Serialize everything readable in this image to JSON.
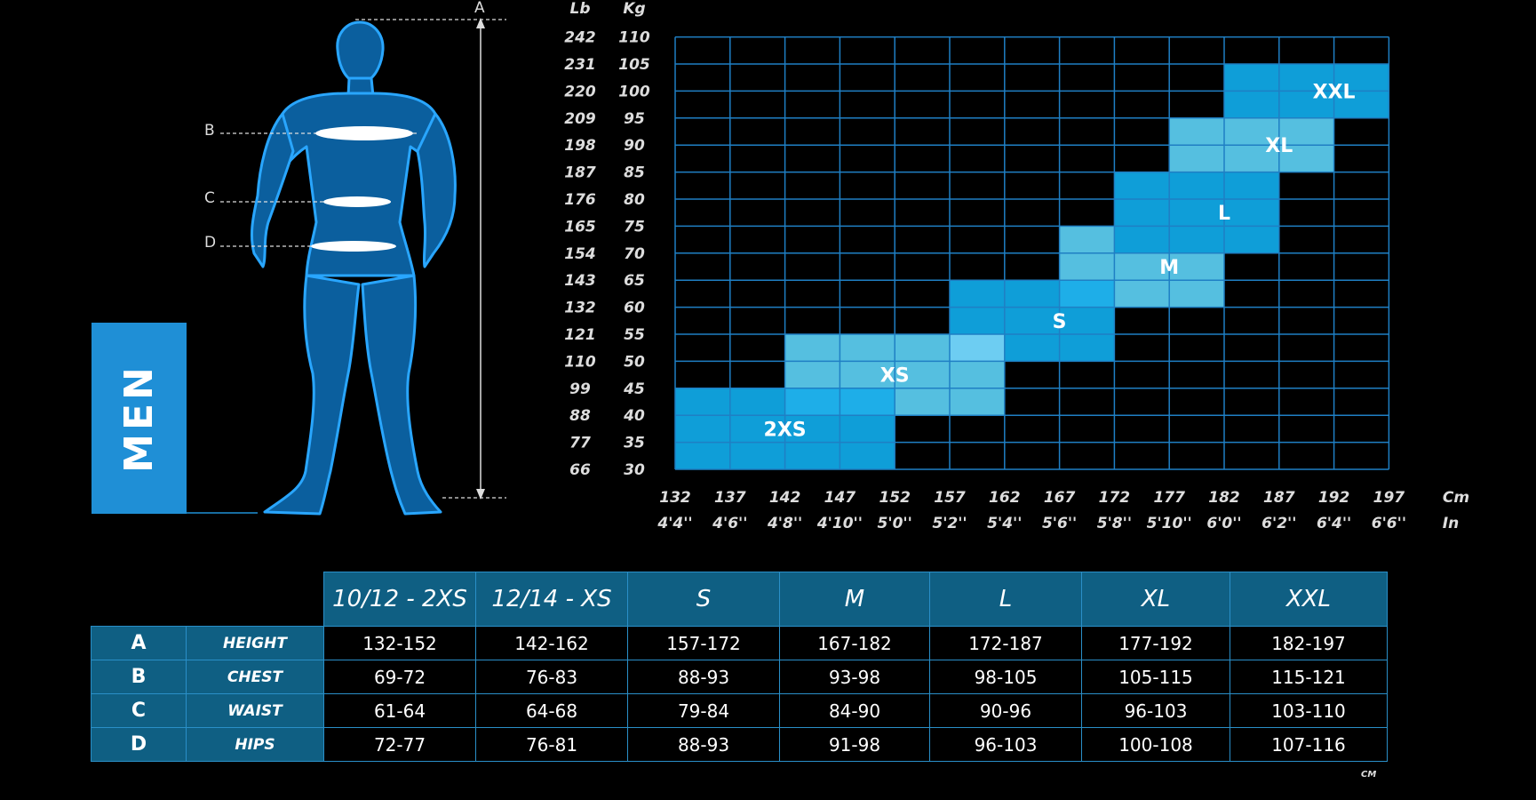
{
  "gender_label": "MEN",
  "body_markers": [
    "A",
    "B",
    "C",
    "D"
  ],
  "chart_data": {
    "type": "heatmap",
    "y_units": [
      "Lb",
      "Kg"
    ],
    "y_lb": [
      "242",
      "231",
      "220",
      "209",
      "198",
      "187",
      "176",
      "165",
      "154",
      "143",
      "132",
      "121",
      "110",
      "99",
      "88",
      "77",
      "66"
    ],
    "y_kg": [
      "110",
      "105",
      "100",
      "95",
      "90",
      "85",
      "80",
      "75",
      "70",
      "65",
      "60",
      "55",
      "50",
      "45",
      "40",
      "35",
      "30"
    ],
    "x_units": [
      "Cm",
      "In"
    ],
    "x_cm": [
      "132",
      "137",
      "142",
      "147",
      "152",
      "157",
      "162",
      "167",
      "172",
      "177",
      "182",
      "187",
      "192",
      "197"
    ],
    "x_in": [
      "4'4''",
      "4'6''",
      "4'8''",
      "4'10''",
      "5'0''",
      "5'2''",
      "5'4''",
      "5'6''",
      "5'8''",
      "5'10''",
      "6'0''",
      "6'2''",
      "6'4''",
      "6'6''"
    ],
    "grid": true,
    "sizes": [
      {
        "name": "2XS",
        "height_cm": [
          132,
          152
        ],
        "weight_kg": [
          30,
          45
        ],
        "color": "#0f9ed8",
        "label_at": [
          142,
          37.5
        ]
      },
      {
        "name": "XS",
        "height_cm": [
          142,
          162
        ],
        "weight_kg": [
          40,
          55
        ],
        "color": "#55bfe0",
        "label_at": [
          152,
          47.5
        ]
      },
      {
        "name": "S",
        "height_cm": [
          157,
          172
        ],
        "weight_kg": [
          50,
          65
        ],
        "color": "#0f9ed8",
        "label_at": [
          167,
          57.5
        ]
      },
      {
        "name": "M",
        "height_cm": [
          167,
          182
        ],
        "weight_kg": [
          60,
          75
        ],
        "color": "#55bfe0",
        "label_at": [
          177,
          67.5
        ]
      },
      {
        "name": "L",
        "height_cm": [
          172,
          187
        ],
        "weight_kg": [
          70,
          85
        ],
        "color": "#0f9ed8",
        "label_at": [
          182,
          77.5
        ]
      },
      {
        "name": "XL",
        "height_cm": [
          177,
          192
        ],
        "weight_kg": [
          85,
          95
        ],
        "color": "#55bfe0",
        "label_at": [
          187,
          90
        ]
      },
      {
        "name": "XXL",
        "height_cm": [
          182,
          197
        ],
        "weight_kg": [
          95,
          105
        ],
        "color": "#0f9ed8",
        "label_at": [
          192,
          100
        ]
      }
    ],
    "overlaps": [
      {
        "height_cm": [
          142,
          152
        ],
        "weight_kg": [
          40,
          45
        ],
        "color": "#1eaee8"
      },
      {
        "height_cm": [
          157,
          162
        ],
        "weight_kg": [
          50,
          55
        ],
        "color": "#6dcdf2"
      },
      {
        "height_cm": [
          167,
          172
        ],
        "weight_kg": [
          60,
          65
        ],
        "color": "#1eaee8"
      }
    ]
  },
  "table": {
    "headers": [
      "10/12 - 2XS",
      "12/14 - XS",
      "S",
      "M",
      "L",
      "XL",
      "XXL"
    ],
    "rows": [
      {
        "letter": "A",
        "measure": "HEIGHT",
        "values": [
          "132-152",
          "142-162",
          "157-172",
          "167-182",
          "172-187",
          "177-192",
          "182-197"
        ]
      },
      {
        "letter": "B",
        "measure": "CHEST",
        "values": [
          "69-72",
          "76-83",
          "88-93",
          "93-98",
          "98-105",
          "105-115",
          "115-121"
        ]
      },
      {
        "letter": "C",
        "measure": "WAIST",
        "values": [
          "61-64",
          "64-68",
          "79-84",
          "84-90",
          "90-96",
          "96-103",
          "103-110"
        ]
      },
      {
        "letter": "D",
        "measure": "HIPS",
        "values": [
          "72-77",
          "76-81",
          "88-93",
          "91-98",
          "96-103",
          "100-108",
          "107-116"
        ]
      }
    ],
    "unit_note": "CM"
  },
  "colors": {
    "accent": "#1f8fd6",
    "table_header": "#0f5f83",
    "grid": "#1f7fc4",
    "light_block": "#55bfe0",
    "dark_block": "#0f9ed8"
  }
}
